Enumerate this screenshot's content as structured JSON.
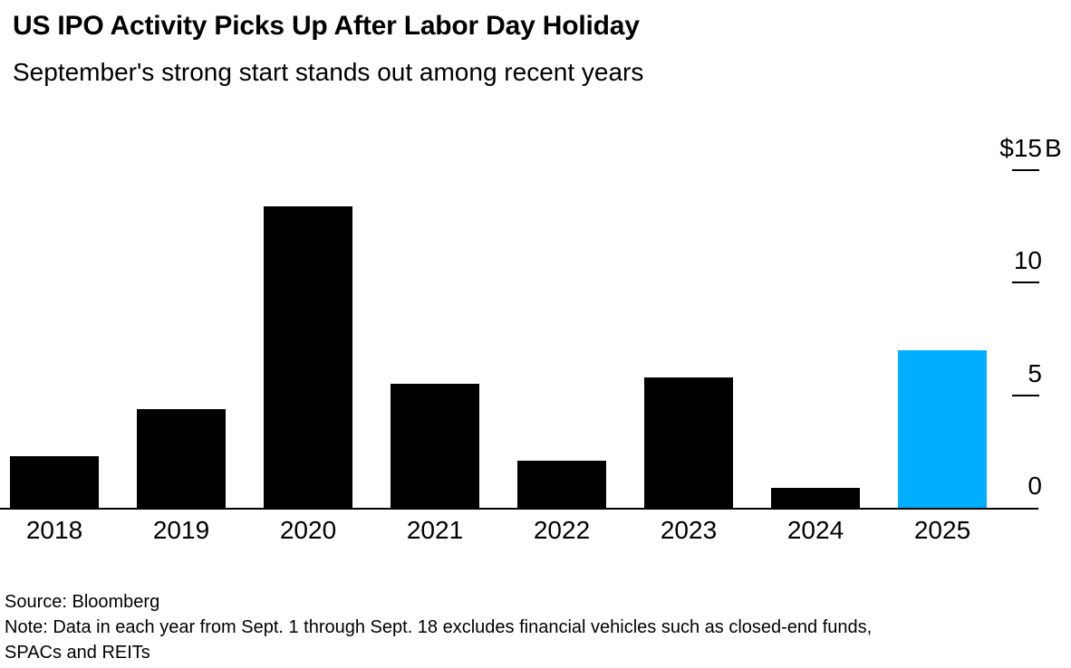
{
  "chart_data": {
    "type": "bar",
    "title": "US IPO Activity Picks Up After Labor Day Holiday",
    "subtitle": "September's strong start stands out among recent years",
    "categories": [
      "2018",
      "2019",
      "2020",
      "2021",
      "2022",
      "2023",
      "2024",
      "2025"
    ],
    "values": [
      2.3,
      4.4,
      13.4,
      5.5,
      2.1,
      5.8,
      0.9,
      7.0
    ],
    "unit": "$B",
    "xlabel": "",
    "ylabel": "",
    "ylim": [
      0,
      15
    ],
    "yticks": [
      {
        "value": 0,
        "num": "0",
        "prefix": "",
        "suffix": "",
        "tick": false
      },
      {
        "value": 5,
        "num": "5",
        "prefix": "",
        "suffix": "",
        "tick": true
      },
      {
        "value": 10,
        "num": "10",
        "prefix": "",
        "suffix": "",
        "tick": true
      },
      {
        "value": 15,
        "num": "15",
        "prefix": "$",
        "suffix": "B",
        "tick": true
      }
    ],
    "axis_side": "right",
    "grid": false,
    "legend": null,
    "colors": {
      "default": "#000000",
      "highlight": "#00AEFF"
    },
    "highlight_category": "2025",
    "source": "Source: Bloomberg",
    "note": "Note: Data in each year from Sept. 1 through Sept. 18 excludes financial vehicles such as closed-end funds, SPACs and REITs"
  }
}
